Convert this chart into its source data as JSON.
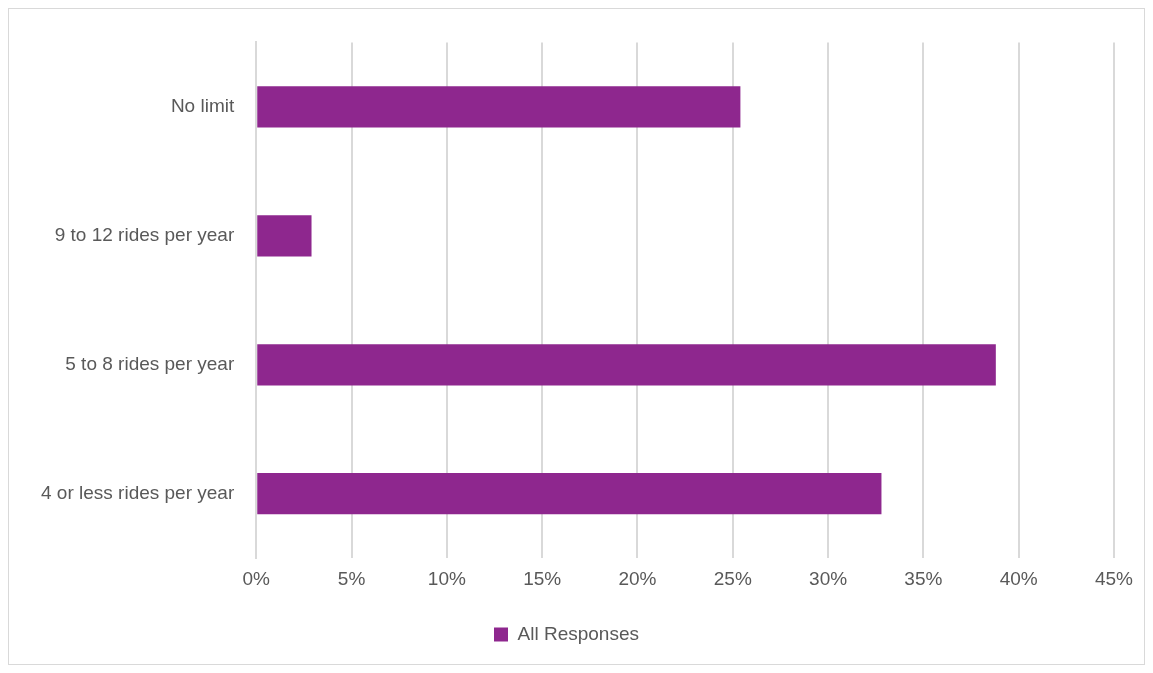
{
  "chart_data": {
    "type": "bar",
    "orientation": "horizontal",
    "categories": [
      "No limit",
      "9 to 12 rides per year",
      "5 to 8 rides per year",
      "4 or less rides per year"
    ],
    "series": [
      {
        "name": "All Responses",
        "color": "#8e278e",
        "values": [
          25.4,
          2.9,
          38.8,
          32.8
        ]
      }
    ],
    "xlim": [
      0,
      45
    ],
    "xticks": [
      {
        "value": 0,
        "label": "0%"
      },
      {
        "value": 5,
        "label": "5%"
      },
      {
        "value": 10,
        "label": "10%"
      },
      {
        "value": 15,
        "label": "15%"
      },
      {
        "value": 20,
        "label": "20%"
      },
      {
        "value": 25,
        "label": "25%"
      },
      {
        "value": 30,
        "label": "30%"
      },
      {
        "value": 35,
        "label": "35%"
      },
      {
        "value": 40,
        "label": "40%"
      },
      {
        "value": 45,
        "label": "45%"
      }
    ],
    "grid": "x",
    "legend": "bottom"
  }
}
